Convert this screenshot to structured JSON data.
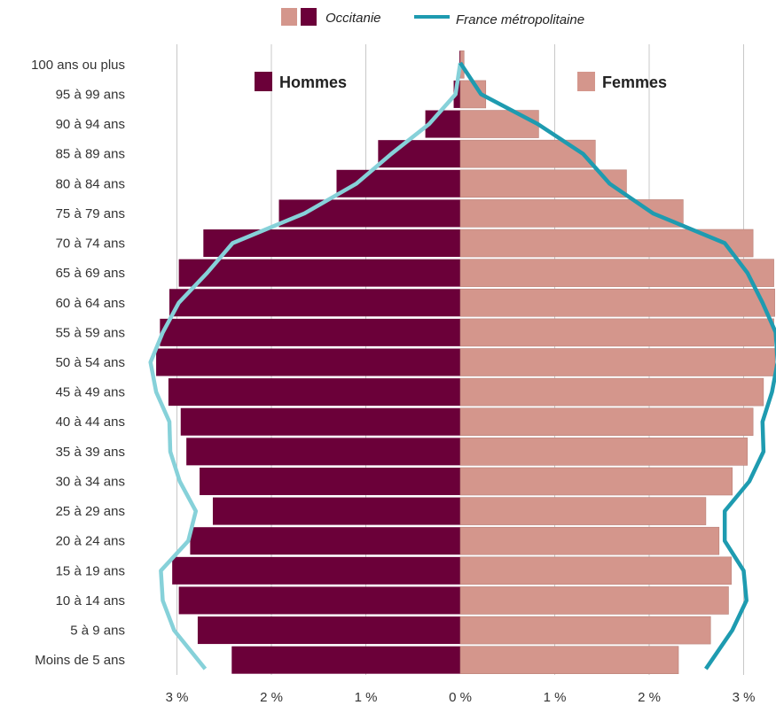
{
  "chart_data": {
    "type": "bar",
    "orientation": "horizontal",
    "legend": {
      "occitanie": "Occitanie",
      "france": "France métropolitaine"
    },
    "series_labels": {
      "men": "Hommes",
      "women": "Femmes"
    },
    "categories": [
      "100 ans ou plus",
      "95 à 99 ans",
      "90 à 94 ans",
      "85 à 89 ans",
      "80 à 84 ans",
      "75 à 79 ans",
      "70 à 74 ans",
      "65 à 69 ans",
      "60 à 64 ans",
      "55 à 59 ans",
      "50 à 54 ans",
      "45 à 49 ans",
      "40 à 44 ans",
      "35 à 39 ans",
      "30 à 34 ans",
      "25 à 29 ans",
      "20 à 24 ans",
      "15 à 19 ans",
      "10 à 14 ans",
      "5 à 9 ans",
      "Moins de 5 ans"
    ],
    "series": [
      {
        "name": "Hommes",
        "values": [
          0.01,
          0.07,
          0.37,
          0.87,
          1.31,
          1.92,
          2.72,
          2.98,
          3.08,
          3.18,
          3.22,
          3.09,
          2.96,
          2.9,
          2.76,
          2.62,
          2.86,
          3.05,
          2.98,
          2.78,
          2.42
        ]
      },
      {
        "name": "Femmes",
        "values": [
          0.04,
          0.27,
          0.83,
          1.43,
          1.76,
          2.36,
          3.1,
          3.32,
          3.33,
          3.32,
          3.33,
          3.21,
          3.1,
          3.04,
          2.88,
          2.6,
          2.74,
          2.87,
          2.84,
          2.65,
          2.31
        ]
      }
    ],
    "france": {
      "men": [
        0.0,
        0.05,
        0.33,
        0.73,
        1.1,
        1.65,
        2.41,
        2.68,
        2.98,
        3.15,
        3.28,
        3.22,
        3.08,
        3.07,
        2.97,
        2.8,
        2.88,
        3.17,
        3.15,
        3.03,
        2.7
      ],
      "women": [
        0.0,
        0.22,
        0.82,
        1.3,
        1.58,
        2.04,
        2.8,
        3.04,
        3.2,
        3.34,
        3.36,
        3.3,
        3.2,
        3.21,
        3.06,
        2.8,
        2.8,
        3.0,
        3.03,
        2.88,
        2.6
      ]
    },
    "xlim": [
      -3.3,
      3.3
    ],
    "x_ticks": [
      -3,
      -2,
      -1,
      0,
      1,
      2,
      3
    ],
    "x_tick_labels": [
      "3 %",
      "2 %",
      "1 %",
      "0 %",
      "1 %",
      "2 %",
      "3 %"
    ],
    "grid": true,
    "legend_placement": "top-center"
  },
  "colors": {
    "men": "#6b0039",
    "women": "#d4968c",
    "france_men": "#86d1d9",
    "france_women": "#1e9bb0",
    "grid": "#c8c8c8"
  }
}
